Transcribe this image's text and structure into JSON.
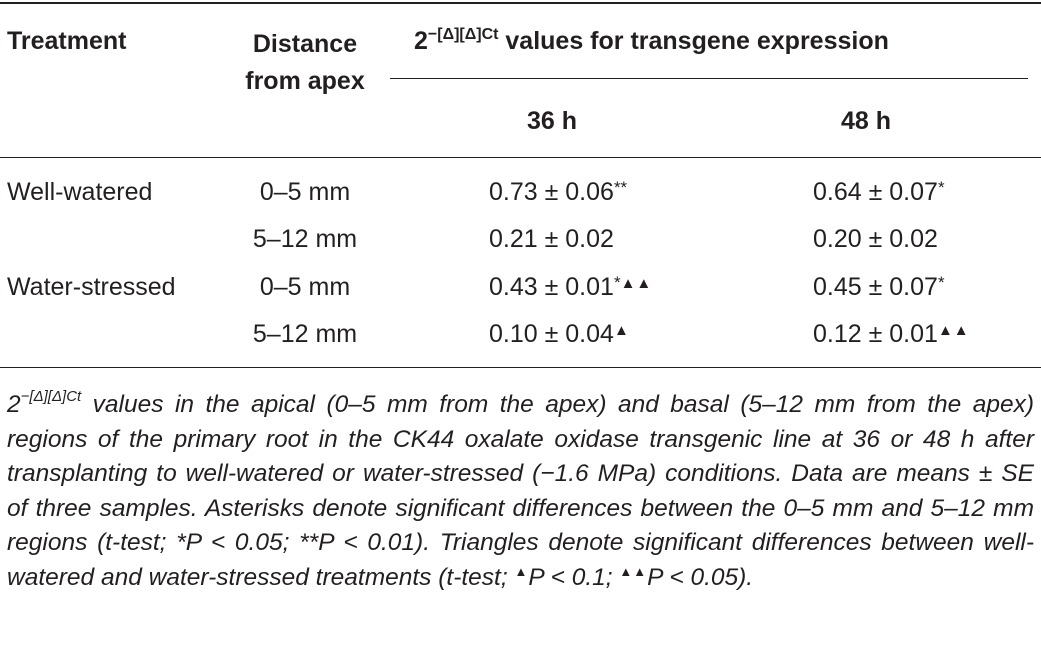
{
  "table": {
    "headers": {
      "treatment": "Treatment",
      "distance_line1": "Distance",
      "distance_line2": "from apex",
      "values_base": "2",
      "values_exponent": "−[Δ][Δ]Ct",
      "values_suffix": " values for transgene expression",
      "col_36h": "36 h",
      "col_48h": "48 h"
    },
    "rows": [
      {
        "treatment": "Well-watered",
        "distance": "0–5 mm",
        "v36": "0.73 ± 0.06",
        "v36_ast": "**",
        "v36_tri": "",
        "v48": "0.64 ± 0.07",
        "v48_ast": "*",
        "v48_tri": ""
      },
      {
        "treatment": "",
        "distance": "5–12 mm",
        "v36": "0.21 ± 0.02",
        "v36_ast": "",
        "v36_tri": "",
        "v48": "0.20 ± 0.02",
        "v48_ast": "",
        "v48_tri": ""
      },
      {
        "treatment": "Water-stressed",
        "distance": "0–5 mm",
        "v36": "0.43 ± 0.01",
        "v36_ast": "*",
        "v36_tri": "▲▲",
        "v48": "0.45 ± 0.07",
        "v48_ast": "*",
        "v48_tri": ""
      },
      {
        "treatment": "",
        "distance": "5–12 mm",
        "v36": "0.10 ± 0.04",
        "v36_ast": "",
        "v36_tri": "▲",
        "v48": "0.12 ± 0.01",
        "v48_ast": "",
        "v48_tri": "▲▲"
      }
    ]
  },
  "caption": {
    "base": "2",
    "exponent": "−[Δ][Δ]Ct",
    "part1": " values in the apical (0–5 mm from the apex) and basal (5–12 mm from the apex) regions of the primary root in the CK44 oxalate oxidase transgenic line at 36 or 48 h after transplanting to well-watered or water-stressed (−1.6 MPa) conditions. Data are means ± SE of three samples. Asterisks denote significant differences between the 0–5 mm and 5–12 mm regions (t-test; *P < 0.05; **P < 0.01). Triangles denote significant differences between well-watered and water-stressed treatments (t-test; ",
    "tri1": "▲",
    "part2": "P < 0.1; ",
    "tri2": "▲▲",
    "part3": "P < 0.05)."
  }
}
